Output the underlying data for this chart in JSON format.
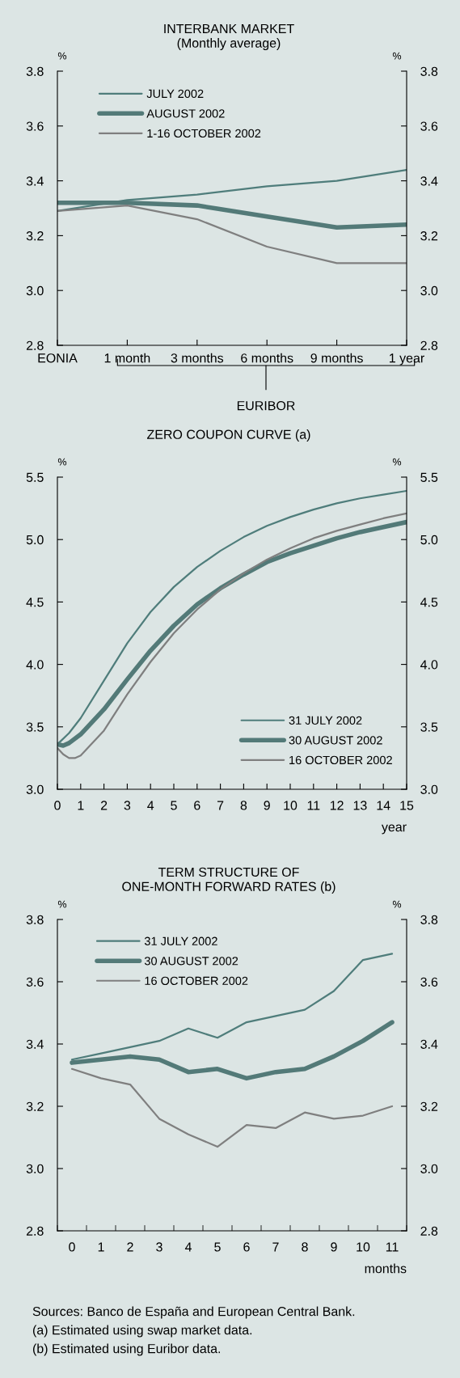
{
  "chart_data": [
    {
      "type": "line",
      "title": "INTERBANK MARKET\n(Monthly average)",
      "ylabel": "%",
      "y2label": "%",
      "categories": [
        "EONIA",
        "1 month",
        "3 months",
        "6 months",
        "9 months",
        "1 year"
      ],
      "series": [
        {
          "name": "JULY 2002",
          "color": "#4f7d7b",
          "values": [
            3.29,
            3.33,
            3.35,
            3.38,
            3.4,
            3.44
          ]
        },
        {
          "name": "AUGUST 2002",
          "color": "#537a78",
          "values": [
            3.32,
            3.32,
            3.31,
            3.27,
            3.23,
            3.24
          ]
        },
        {
          "name": "1-16 OCTOBER 2002",
          "color": "#7f7f7f",
          "values": [
            3.29,
            3.31,
            3.26,
            3.16,
            3.1,
            3.1
          ]
        }
      ],
      "ylim": [
        2.8,
        3.8
      ],
      "yticks": [
        {
          "value": 2.8,
          "label": "2.8"
        },
        {
          "value": 3.0,
          "label": "3.0"
        },
        {
          "value": 3.2,
          "label": "3.2"
        },
        {
          "value": 3.4,
          "label": "3.4"
        },
        {
          "value": 3.6,
          "label": "3.6"
        },
        {
          "value": 3.8,
          "label": "3.8"
        }
      ],
      "y2lim": [
        2.8,
        3.8
      ],
      "y2ticks": [
        {
          "value": 2.8,
          "label": "2.8"
        },
        {
          "value": 3.0,
          "label": "3.0"
        },
        {
          "value": 3.2,
          "label": "3.2"
        },
        {
          "value": 3.4,
          "label": "3.4"
        },
        {
          "value": 3.6,
          "label": "3.6"
        },
        {
          "value": 3.8,
          "label": "3.8"
        }
      ],
      "annotations": [
        "EURIBOR"
      ],
      "legend": "top left",
      "grid": false
    },
    {
      "type": "line",
      "title": "ZERO COUPON CURVE (a)",
      "ylabel": "%",
      "y2label": "%",
      "xlabel": "year",
      "series": [
        {
          "name": "31 JULY 2002",
          "color": "#4f7d7b",
          "x": [
            0,
            0.5,
            1,
            2,
            3,
            4,
            5,
            6,
            7,
            8,
            9,
            10,
            11,
            12,
            13,
            14,
            15
          ],
          "values": [
            3.36,
            3.45,
            3.57,
            3.87,
            4.17,
            4.42,
            4.62,
            4.78,
            4.91,
            5.02,
            5.11,
            5.18,
            5.24,
            5.29,
            5.33,
            5.36,
            5.39
          ]
        },
        {
          "name": "30 AUGUST 2002",
          "color": "#537a78",
          "x": [
            0,
            0.25,
            0.5,
            1,
            2,
            3,
            4,
            5,
            6,
            7,
            8,
            9,
            10,
            11,
            12,
            13,
            14,
            15
          ],
          "values": [
            3.36,
            3.35,
            3.37,
            3.44,
            3.64,
            3.88,
            4.11,
            4.31,
            4.48,
            4.61,
            4.72,
            4.82,
            4.89,
            4.95,
            5.01,
            5.06,
            5.1,
            5.14
          ]
        },
        {
          "name": "16 OCTOBER 2002",
          "color": "#7f7f7f",
          "x": [
            0,
            0.25,
            0.5,
            0.75,
            1,
            2,
            3,
            4,
            5,
            6,
            7,
            8,
            9,
            10,
            11,
            12,
            13,
            14,
            15
          ],
          "values": [
            3.33,
            3.28,
            3.25,
            3.25,
            3.27,
            3.47,
            3.76,
            4.02,
            4.25,
            4.44,
            4.6,
            4.73,
            4.84,
            4.93,
            5.01,
            5.07,
            5.12,
            5.17,
            5.21
          ]
        }
      ],
      "xlim": [
        0,
        15
      ],
      "xticks": [
        0,
        1,
        2,
        3,
        4,
        5,
        6,
        7,
        8,
        9,
        10,
        11,
        12,
        13,
        14,
        15
      ],
      "ylim": [
        3.0,
        5.5
      ],
      "yticks": [
        {
          "value": 3.0,
          "label": "3.0"
        },
        3.5,
        {
          "value": 4.0,
          "label": "4.0"
        },
        4.5,
        {
          "value": 5.0,
          "label": "5.0"
        },
        5.5
      ],
      "y2lim": [
        3.0,
        5.5
      ],
      "y2ticks": [
        {
          "value": 3.0,
          "label": "3.0"
        },
        3.5,
        {
          "value": 4.0,
          "label": "4.0"
        },
        4.5,
        {
          "value": 5.0,
          "label": "5.0"
        },
        5.5
      ],
      "legend": "bottom right",
      "grid": false
    },
    {
      "type": "line",
      "title": "TERM STRUCTURE OF\nONE-MONTH FORWARD RATES (b)",
      "ylabel": "%",
      "y2label": "%",
      "xlabel": "months",
      "categories": [
        "0",
        "1",
        "2",
        "3",
        "4",
        "5",
        "6",
        "7",
        "8",
        "9",
        "10",
        "11"
      ],
      "series": [
        {
          "name": "31 JULY 2002",
          "color": "#4f7d7b",
          "values": [
            3.35,
            3.37,
            3.39,
            3.41,
            3.45,
            3.42,
            3.47,
            3.49,
            3.51,
            3.57,
            3.67,
            3.69
          ]
        },
        {
          "name": "30 AUGUST 2002",
          "color": "#537a78",
          "values": [
            3.34,
            3.35,
            3.36,
            3.35,
            3.31,
            3.32,
            3.29,
            3.31,
            3.32,
            3.36,
            3.41,
            3.47
          ]
        },
        {
          "name": "16 OCTOBER 2002",
          "color": "#7f7f7f",
          "values": [
            3.32,
            3.29,
            3.27,
            3.16,
            3.11,
            3.07,
            3.14,
            3.13,
            3.18,
            3.16,
            3.17,
            3.2
          ]
        }
      ],
      "ylim": [
        2.8,
        3.8
      ],
      "yticks": [
        {
          "value": 2.8,
          "label": "2.8"
        },
        {
          "value": 3.0,
          "label": "3.0"
        },
        {
          "value": 3.2,
          "label": "3.2"
        },
        {
          "value": 3.4,
          "label": "3.4"
        },
        {
          "value": 3.6,
          "label": "3.6"
        },
        {
          "value": 3.8,
          "label": "3.8"
        }
      ],
      "y2lim": [
        2.8,
        3.8
      ],
      "y2ticks": [
        {
          "value": 2.8,
          "label": "2.8"
        },
        {
          "value": 3.0,
          "label": "3.0"
        },
        {
          "value": 3.2,
          "label": "3.2"
        },
        {
          "value": 3.4,
          "label": "3.4"
        },
        {
          "value": 3.6,
          "label": "3.6"
        },
        {
          "value": 3.8,
          "label": "3.8"
        }
      ],
      "annotations": [
        "Sources: Banco de España and European Central Bank.",
        "(a) Estimated using swap market data.",
        "(b) Estimated using Euribor data."
      ],
      "legend": "top left",
      "grid": false
    }
  ]
}
